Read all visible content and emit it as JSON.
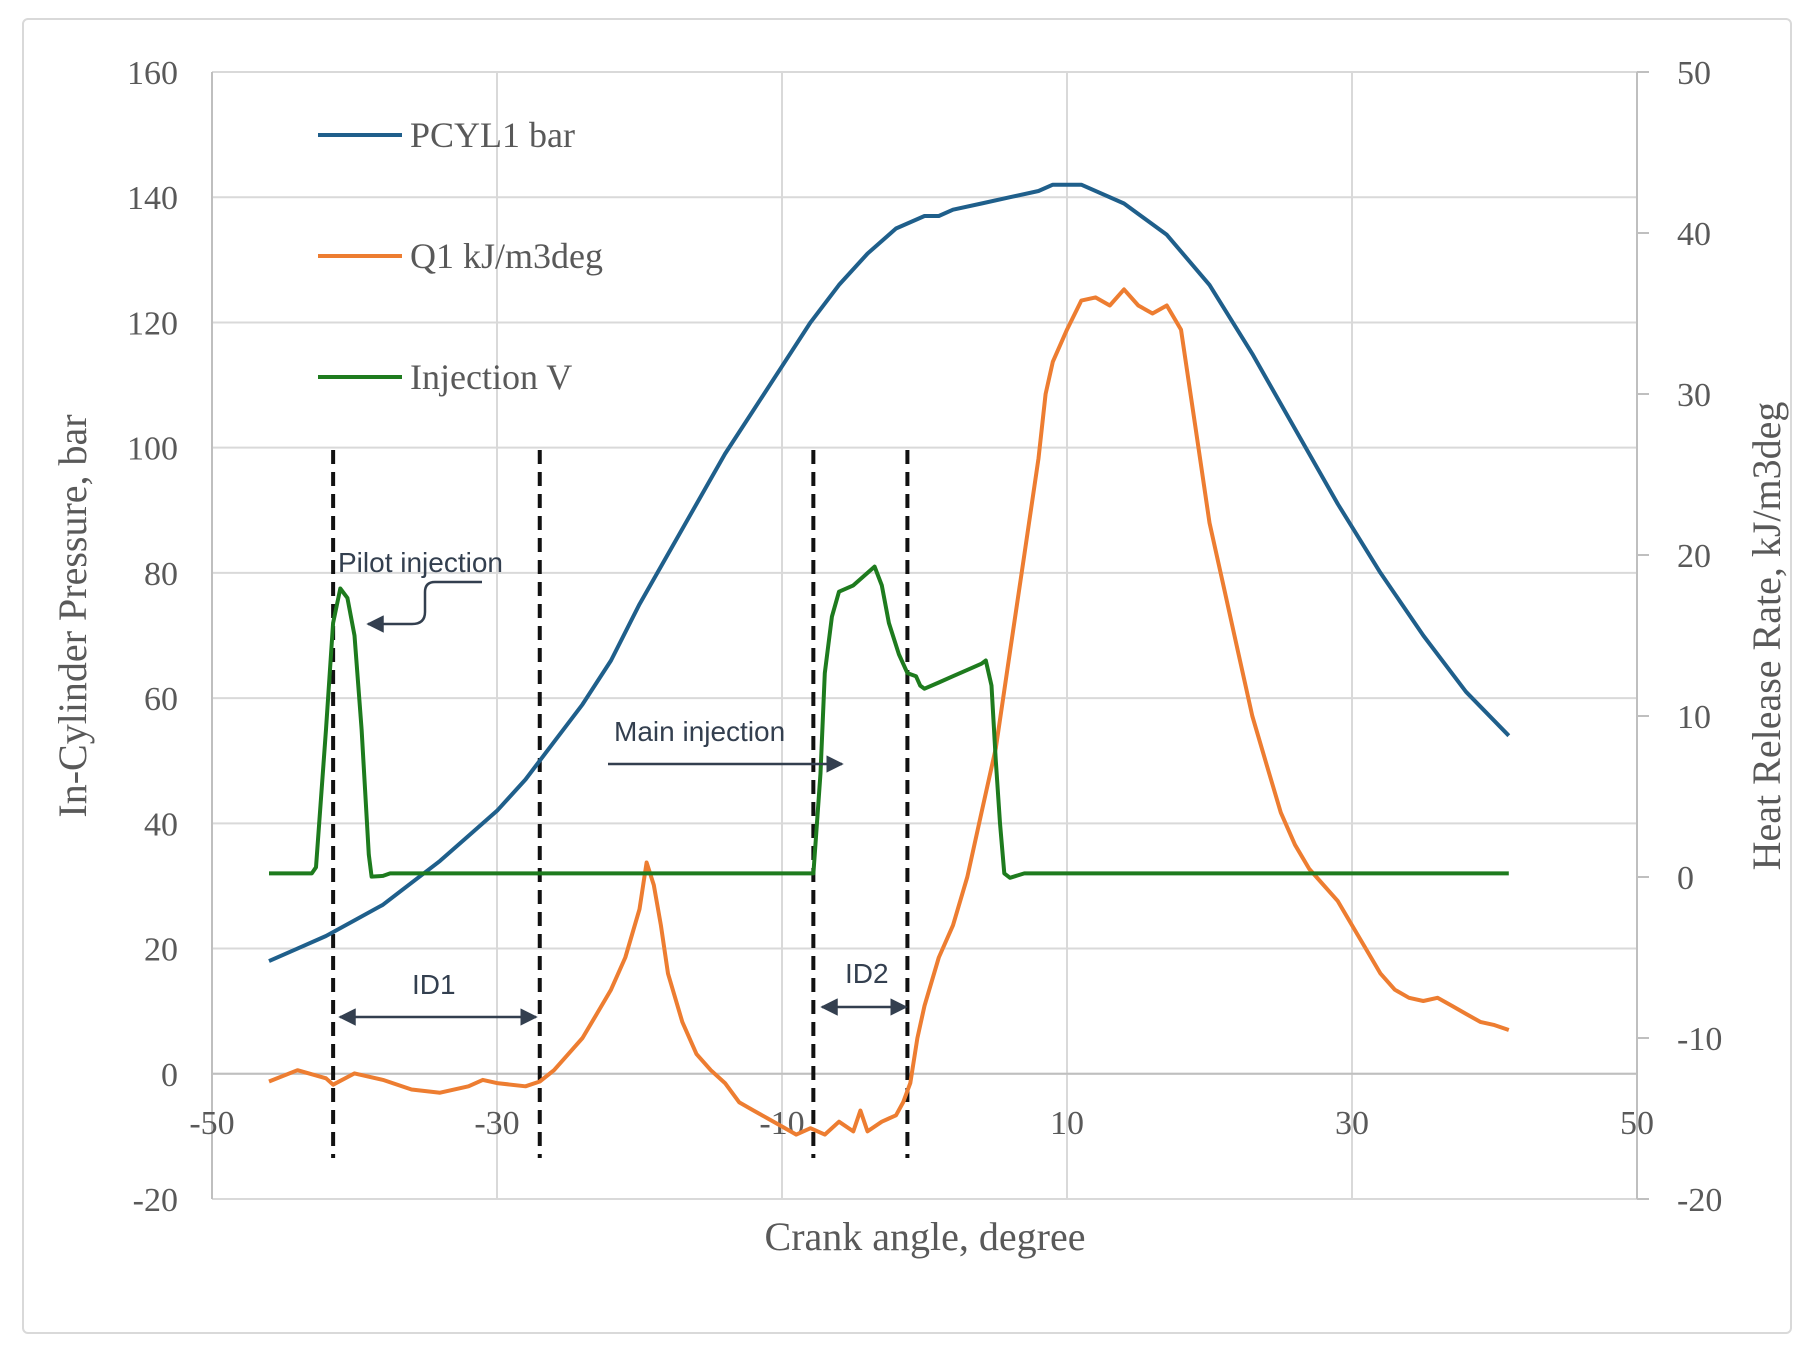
{
  "chart_data": {
    "type": "line",
    "x_axis": {
      "label": "Crank angle, degree",
      "range": [
        -50,
        50
      ],
      "tick_values": [
        -50,
        -30,
        -10,
        10,
        30,
        50
      ],
      "tick_labels": [
        "-50",
        "-30",
        "-10",
        "10",
        "30",
        "50"
      ],
      "crosses_at": 0
    },
    "y_axis_left": {
      "label": "In-Cylinder Pressure, bar",
      "range": [
        -20,
        160
      ],
      "tick_values": [
        -20,
        0,
        20,
        40,
        60,
        80,
        100,
        120,
        140,
        160
      ],
      "tick_labels": [
        "-20",
        "0",
        "20",
        "40",
        "60",
        "80",
        "100",
        "120",
        "140",
        "160"
      ]
    },
    "y_axis_right": {
      "label": "Heat Release Rate, kJ/m3deg",
      "range": [
        -20,
        50
      ],
      "tick_values": [
        -20,
        -10,
        0,
        10,
        20,
        30,
        40,
        50
      ],
      "tick_labels": [
        "-20",
        "-10",
        "0",
        "10",
        "20",
        "30",
        "40",
        "50"
      ]
    },
    "grid": true,
    "legend_position": "top-left",
    "series": [
      {
        "name": "PCYL1 bar",
        "color": "#1f5f8b",
        "axis": "left",
        "points": [
          [
            -46,
            18
          ],
          [
            -44,
            20
          ],
          [
            -42,
            22
          ],
          [
            -40,
            24.5
          ],
          [
            -38,
            27
          ],
          [
            -36,
            30.5
          ],
          [
            -34,
            34
          ],
          [
            -32,
            38
          ],
          [
            -30,
            42
          ],
          [
            -28,
            47
          ],
          [
            -26,
            53
          ],
          [
            -24,
            59
          ],
          [
            -22,
            66
          ],
          [
            -20,
            75
          ],
          [
            -18,
            83
          ],
          [
            -16,
            91
          ],
          [
            -14,
            99
          ],
          [
            -12,
            106
          ],
          [
            -10,
            113
          ],
          [
            -8,
            120
          ],
          [
            -6,
            126
          ],
          [
            -4,
            131
          ],
          [
            -2,
            135
          ],
          [
            0,
            137
          ],
          [
            1,
            137
          ],
          [
            2,
            138
          ],
          [
            4,
            139
          ],
          [
            6,
            140
          ],
          [
            8,
            141
          ],
          [
            9,
            142
          ],
          [
            11,
            142
          ],
          [
            14,
            139
          ],
          [
            17,
            134
          ],
          [
            20,
            126
          ],
          [
            23,
            115
          ],
          [
            26,
            103
          ],
          [
            29,
            91
          ],
          [
            32,
            80
          ],
          [
            35,
            70
          ],
          [
            38,
            61
          ],
          [
            41,
            54
          ]
        ]
      },
      {
        "name": "Q1 kJ/m3deg",
        "color": "#ed7d31",
        "axis": "right",
        "points": [
          [
            -46,
            -12.7
          ],
          [
            -44,
            -12
          ],
          [
            -42,
            -12.5
          ],
          [
            -41.5,
            -12.9
          ],
          [
            -40,
            -12.2
          ],
          [
            -38,
            -12.6
          ],
          [
            -36,
            -13.2
          ],
          [
            -34,
            -13.4
          ],
          [
            -32,
            -13
          ],
          [
            -31,
            -12.6
          ],
          [
            -30,
            -12.8
          ],
          [
            -28,
            -13
          ],
          [
            -27,
            -12.7
          ],
          [
            -26,
            -12
          ],
          [
            -25,
            -11
          ],
          [
            -24,
            -10
          ],
          [
            -23,
            -8.5
          ],
          [
            -22,
            -7
          ],
          [
            -21,
            -5
          ],
          [
            -20,
            -2
          ],
          [
            -19.5,
            0.9
          ],
          [
            -19,
            -0.5
          ],
          [
            -18.5,
            -3
          ],
          [
            -18,
            -6
          ],
          [
            -17,
            -9
          ],
          [
            -16,
            -11
          ],
          [
            -15,
            -12
          ],
          [
            -14,
            -12.8
          ],
          [
            -13,
            -14
          ],
          [
            -12,
            -14.5
          ],
          [
            -11,
            -15
          ],
          [
            -10,
            -15.5
          ],
          [
            -9,
            -16
          ],
          [
            -8,
            -15.6
          ],
          [
            -7,
            -16
          ],
          [
            -6,
            -15.2
          ],
          [
            -5,
            -15.8
          ],
          [
            -4.5,
            -14.5
          ],
          [
            -4,
            -15.8
          ],
          [
            -3,
            -15.2
          ],
          [
            -2,
            -14.8
          ],
          [
            -1.5,
            -14
          ],
          [
            -1,
            -12.8
          ],
          [
            -0.5,
            -10
          ],
          [
            0,
            -8
          ],
          [
            1,
            -5
          ],
          [
            2,
            -3
          ],
          [
            3,
            0
          ],
          [
            4,
            4
          ],
          [
            5,
            8
          ],
          [
            6,
            14
          ],
          [
            7,
            20
          ],
          [
            8,
            26
          ],
          [
            8.5,
            30
          ],
          [
            9,
            32
          ],
          [
            10,
            34
          ],
          [
            11,
            35.8
          ],
          [
            12,
            36
          ],
          [
            13,
            35.5
          ],
          [
            14,
            36.5
          ],
          [
            15,
            35.5
          ],
          [
            16,
            35
          ],
          [
            17,
            35.5
          ],
          [
            18,
            34
          ],
          [
            19,
            28
          ],
          [
            20,
            22
          ],
          [
            21,
            18
          ],
          [
            22,
            14
          ],
          [
            23,
            10
          ],
          [
            24,
            7
          ],
          [
            25,
            4
          ],
          [
            26,
            2
          ],
          [
            27,
            0.5
          ],
          [
            28,
            -0.5
          ],
          [
            29,
            -1.5
          ],
          [
            30,
            -3
          ],
          [
            31,
            -4.5
          ],
          [
            32,
            -6
          ],
          [
            33,
            -7
          ],
          [
            34,
            -7.5
          ],
          [
            35,
            -7.7
          ],
          [
            36,
            -7.5
          ],
          [
            37,
            -8
          ],
          [
            38,
            -8.5
          ],
          [
            39,
            -9
          ],
          [
            40,
            -9.2
          ],
          [
            41,
            -9.5
          ]
        ]
      },
      {
        "name": "Injection V",
        "color": "#1e7b1e",
        "axis": "left",
        "points": [
          [
            -46,
            32
          ],
          [
            -43,
            32
          ],
          [
            -42.7,
            33
          ],
          [
            -42,
            55
          ],
          [
            -41.5,
            72
          ],
          [
            -41,
            77.5
          ],
          [
            -40.5,
            76
          ],
          [
            -40,
            70
          ],
          [
            -39.5,
            55
          ],
          [
            -39,
            35
          ],
          [
            -38.8,
            31.5
          ],
          [
            -38,
            31.6
          ],
          [
            -37.5,
            32
          ],
          [
            -8,
            32
          ],
          [
            -7.8,
            32
          ],
          [
            -7.3,
            48
          ],
          [
            -7,
            64
          ],
          [
            -6.5,
            73
          ],
          [
            -6,
            77
          ],
          [
            -5,
            78
          ],
          [
            -4,
            80
          ],
          [
            -3.5,
            81
          ],
          [
            -3,
            78
          ],
          [
            -2.5,
            72
          ],
          [
            -1.8,
            67
          ],
          [
            -1.2,
            64
          ],
          [
            -0.6,
            63.5
          ],
          [
            -0.3,
            62
          ],
          [
            0,
            61.5
          ],
          [
            1,
            62.5
          ],
          [
            2,
            63.5
          ],
          [
            3,
            64.5
          ],
          [
            4,
            65.5
          ],
          [
            4.3,
            66
          ],
          [
            4.7,
            62
          ],
          [
            5,
            50
          ],
          [
            5.3,
            40
          ],
          [
            5.6,
            32
          ],
          [
            6,
            31.3
          ],
          [
            7,
            32
          ],
          [
            41,
            32
          ]
        ]
      }
    ],
    "annotations": {
      "pilot_injection": "Pilot injection",
      "main_injection": "Main injection",
      "id1": "ID1",
      "id2": "ID2"
    },
    "reference_lines_x": [
      -41.5,
      -27,
      -7.8,
      -1.2
    ]
  }
}
